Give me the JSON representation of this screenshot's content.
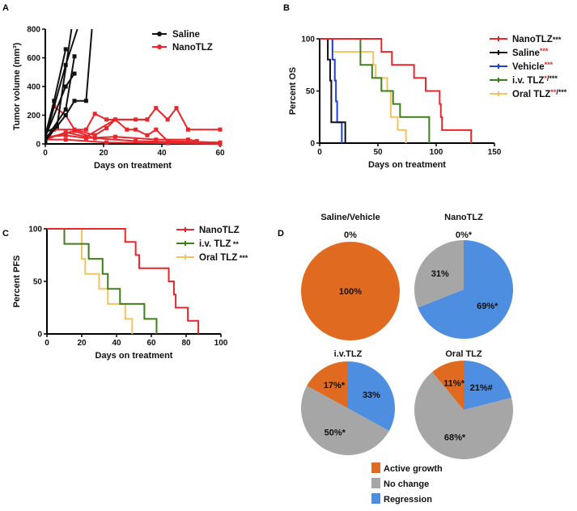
{
  "panels": {
    "A": "A",
    "B": "B",
    "C": "C",
    "D": "D"
  },
  "colors": {
    "saline": "#111111",
    "nano": "#e8262b",
    "vehicle": "#1f3fd6",
    "iv": "#3f7f1a",
    "oral": "#f2c35e",
    "active": "#e06b20",
    "nochange": "#a6a6a6",
    "regression": "#4d8ee0",
    "sig_red": "#e8262b"
  },
  "chart_data": [
    {
      "id": "A",
      "type": "line",
      "xlabel": "Days on treatment",
      "ylabel": "Tumor volume (mm³)",
      "xlim": [
        0,
        60
      ],
      "ylim": [
        0,
        800
      ],
      "xticks": [
        0,
        20,
        40,
        60
      ],
      "yticks": [
        0,
        200,
        400,
        600,
        800
      ],
      "legend": [
        {
          "name": "Saline",
          "color_key": "saline"
        },
        {
          "name": "NanoTLZ",
          "color_key": "nano"
        }
      ],
      "series": [
        {
          "group": "Saline",
          "points": [
            [
              0,
              60
            ],
            [
              3,
              300
            ],
            [
              7,
              660
            ]
          ]
        },
        {
          "group": "Saline",
          "points": [
            [
              0,
              40
            ],
            [
              7,
              550
            ],
            [
              11,
              800
            ]
          ]
        },
        {
          "group": "Saline",
          "points": [
            [
              0,
              30
            ],
            [
              7,
              240
            ],
            [
              10,
              610
            ]
          ]
        },
        {
          "group": "Saline",
          "points": [
            [
              0,
              50
            ],
            [
              7,
              400
            ],
            [
              10,
              490
            ]
          ]
        },
        {
          "group": "Saline",
          "points": [
            [
              0,
              20
            ],
            [
              7,
              200
            ],
            [
              10,
              300
            ],
            [
              14,
              300
            ],
            [
              16,
              800
            ]
          ]
        },
        {
          "group": "Saline",
          "points": [
            [
              0,
              80
            ],
            [
              4,
              120
            ],
            [
              9,
              800
            ]
          ]
        },
        {
          "group": "NanoTLZ",
          "points": [
            [
              0,
              50
            ],
            [
              3,
              260
            ],
            [
              7,
              200
            ],
            [
              10,
              100
            ],
            [
              17,
              60
            ],
            [
              21,
              110
            ],
            [
              24,
              170
            ],
            [
              31,
              170
            ],
            [
              35,
              170
            ],
            [
              38,
              250
            ],
            [
              42,
              170
            ],
            [
              45,
              250
            ],
            [
              49,
              100
            ],
            [
              60,
              100
            ]
          ]
        },
        {
          "group": "NanoTLZ",
          "points": [
            [
              0,
              40
            ],
            [
              3,
              100
            ],
            [
              14,
              100
            ],
            [
              17,
              210
            ],
            [
              21,
              170
            ],
            [
              35,
              170
            ]
          ]
        },
        {
          "group": "NanoTLZ",
          "points": [
            [
              0,
              30
            ],
            [
              7,
              80
            ],
            [
              14,
              50
            ],
            [
              24,
              170
            ],
            [
              28,
              100
            ],
            [
              31,
              100
            ],
            [
              35,
              60
            ],
            [
              38,
              100
            ],
            [
              42,
              20
            ],
            [
              60,
              10
            ]
          ]
        },
        {
          "group": "NanoTLZ",
          "points": [
            [
              0,
              50
            ],
            [
              7,
              60
            ],
            [
              14,
              40
            ],
            [
              24,
              50
            ],
            [
              38,
              30
            ],
            [
              49,
              30
            ],
            [
              52,
              20
            ]
          ]
        },
        {
          "group": "NanoTLZ",
          "points": [
            [
              0,
              30
            ],
            [
              7,
              30
            ],
            [
              21,
              10
            ],
            [
              42,
              5
            ],
            [
              60,
              0
            ]
          ]
        },
        {
          "group": "NanoTLZ",
          "points": [
            [
              0,
              40
            ],
            [
              10,
              90
            ],
            [
              17,
              40
            ],
            [
              31,
              20
            ],
            [
              60,
              5
            ]
          ]
        }
      ]
    },
    {
      "id": "B",
      "type": "line",
      "xlabel": "Days on treatment",
      "ylabel": "Percent OS",
      "xlim": [
        0,
        150
      ],
      "ylim": [
        0,
        100
      ],
      "xticks": [
        0,
        50,
        100,
        150
      ],
      "yticks": [
        0,
        50,
        100
      ],
      "series": [
        {
          "name": "NanoTLZ",
          "sig_red": "",
          "sig_black": "***",
          "color_key": "nano",
          "steps": [
            [
              0,
              100
            ],
            [
              53,
              87.5
            ],
            [
              62,
              75
            ],
            [
              81,
              62.5
            ],
            [
              91,
              50
            ],
            [
              103,
              37.5
            ],
            [
              104,
              25
            ],
            [
              105,
              12.5
            ],
            [
              130,
              0
            ]
          ]
        },
        {
          "name": "Saline",
          "sig_red": "***",
          "sig_black": "",
          "color_key": "saline",
          "steps": [
            [
              0,
              100
            ],
            [
              7,
              80
            ],
            [
              9,
              60
            ],
            [
              10,
              20
            ],
            [
              22,
              0
            ]
          ]
        },
        {
          "name": "Vehicle",
          "sig_red": "***",
          "sig_black": "",
          "color_key": "vehicle",
          "steps": [
            [
              0,
              100
            ],
            [
              11,
              80
            ],
            [
              13,
              60
            ],
            [
              14,
              40
            ],
            [
              15,
              20
            ],
            [
              19,
              0
            ]
          ]
        },
        {
          "name": "i.v. TLZ",
          "sig_red": "*",
          "sig_black": "/***",
          "color_key": "iv",
          "steps": [
            [
              0,
              100
            ],
            [
              35,
              75
            ],
            [
              45,
              62.5
            ],
            [
              53,
              50
            ],
            [
              63,
              37.5
            ],
            [
              69,
              25
            ],
            [
              94,
              0
            ]
          ]
        },
        {
          "name": "Oral TLZ",
          "sig_red": "**",
          "sig_black": "/***",
          "color_key": "oral",
          "steps": [
            [
              0,
              100
            ],
            [
              11,
              87.5
            ],
            [
              46,
              75
            ],
            [
              48,
              62.5
            ],
            [
              58,
              50
            ],
            [
              61,
              25
            ],
            [
              67,
              12.5
            ],
            [
              74,
              0
            ]
          ]
        }
      ]
    },
    {
      "id": "C",
      "type": "line",
      "xlabel": "Days on treatment",
      "ylabel": "Percent PFS",
      "xlim": [
        0,
        100
      ],
      "ylim": [
        0,
        100
      ],
      "xticks": [
        0,
        20,
        40,
        60,
        80,
        100
      ],
      "yticks": [
        0,
        50,
        100
      ],
      "series": [
        {
          "name": "NanoTLZ",
          "sig_red": "",
          "sig_black": "",
          "color_key": "nano",
          "steps": [
            [
              0,
              100
            ],
            [
              45,
              87.5
            ],
            [
              51,
              75
            ],
            [
              53,
              62.5
            ],
            [
              70,
              50
            ],
            [
              73,
              37.5
            ],
            [
              74,
              25
            ],
            [
              81,
              12.5
            ],
            [
              87,
              0
            ]
          ]
        },
        {
          "name": "i.v. TLZ",
          "sig_red": "",
          "sig_black": " **",
          "color_key": "iv",
          "steps": [
            [
              0,
              100
            ],
            [
              10,
              85.7
            ],
            [
              24,
              71.4
            ],
            [
              32,
              57.1
            ],
            [
              35,
              42.9
            ],
            [
              42,
              28.6
            ],
            [
              56,
              14.3
            ],
            [
              63,
              0
            ]
          ]
        },
        {
          "name": "Oral TLZ",
          "sig_red": "",
          "sig_black": " ***",
          "color_key": "oral",
          "steps": [
            [
              0,
              100
            ],
            [
              20,
              71.4
            ],
            [
              22,
              57.1
            ],
            [
              30,
              42.9
            ],
            [
              35,
              28.6
            ],
            [
              45,
              14.3
            ],
            [
              49,
              0
            ]
          ]
        }
      ]
    },
    {
      "id": "D",
      "type": "pie",
      "categories": [
        "Active growth",
        "No change",
        "Regression"
      ],
      "category_color_keys": [
        "active",
        "nochange",
        "regression"
      ],
      "pies": [
        {
          "title": "Saline/Vehicle",
          "top_label": "0%",
          "slices": [
            {
              "cat": 0,
              "value": 100,
              "label": "100%"
            }
          ]
        },
        {
          "title": "NanoTLZ",
          "top_label": "0%*",
          "slices": [
            {
              "cat": 2,
              "value": 69,
              "label": "69%*"
            },
            {
              "cat": 1,
              "value": 31,
              "label": "31%"
            }
          ]
        },
        {
          "title": "i.v.TLZ",
          "top_label": "",
          "slices": [
            {
              "cat": 2,
              "value": 33,
              "label": "33%"
            },
            {
              "cat": 1,
              "value": 50,
              "label": "50%*"
            },
            {
              "cat": 0,
              "value": 17,
              "label": "17%*"
            }
          ]
        },
        {
          "title": "Oral TLZ",
          "top_label": "",
          "slices": [
            {
              "cat": 2,
              "value": 21,
              "label": "21%#"
            },
            {
              "cat": 1,
              "value": 68,
              "label": "68%*"
            },
            {
              "cat": 0,
              "value": 11,
              "label": "11%*"
            }
          ]
        }
      ]
    }
  ]
}
